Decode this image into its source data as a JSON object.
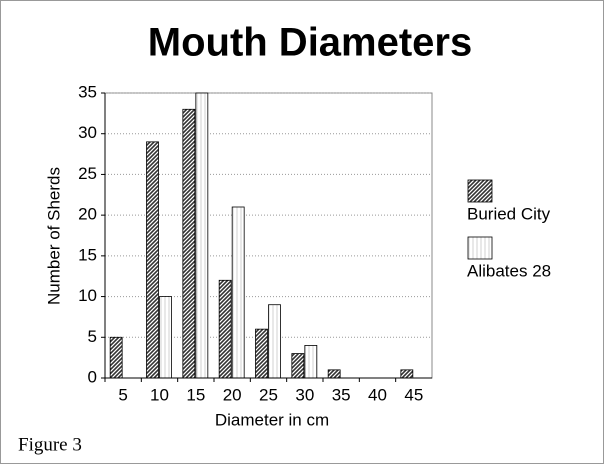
{
  "chart_data": {
    "type": "bar",
    "title": "Mouth Diameters",
    "x_label": "Diameter in cm",
    "y_label": "Number of Sherds",
    "caption": "Figure 3",
    "categories": [
      "5",
      "10",
      "15",
      "20",
      "25",
      "30",
      "35",
      "40",
      "45"
    ],
    "series": [
      {
        "name": "Buried City",
        "color": "#333333",
        "pattern": "diagonal",
        "values": [
          5,
          29,
          33,
          12,
          6,
          3,
          1,
          0,
          1
        ]
      },
      {
        "name": "Alibates 28",
        "color": "#e8e8e8",
        "pattern": "vertical",
        "values": [
          0,
          10,
          35,
          21,
          9,
          4,
          0,
          0,
          0
        ]
      }
    ],
    "ylim": [
      0,
      35
    ],
    "yticks": [
      0,
      5,
      10,
      15,
      20,
      25,
      30,
      35
    ],
    "grid": true,
    "legend": "right"
  }
}
